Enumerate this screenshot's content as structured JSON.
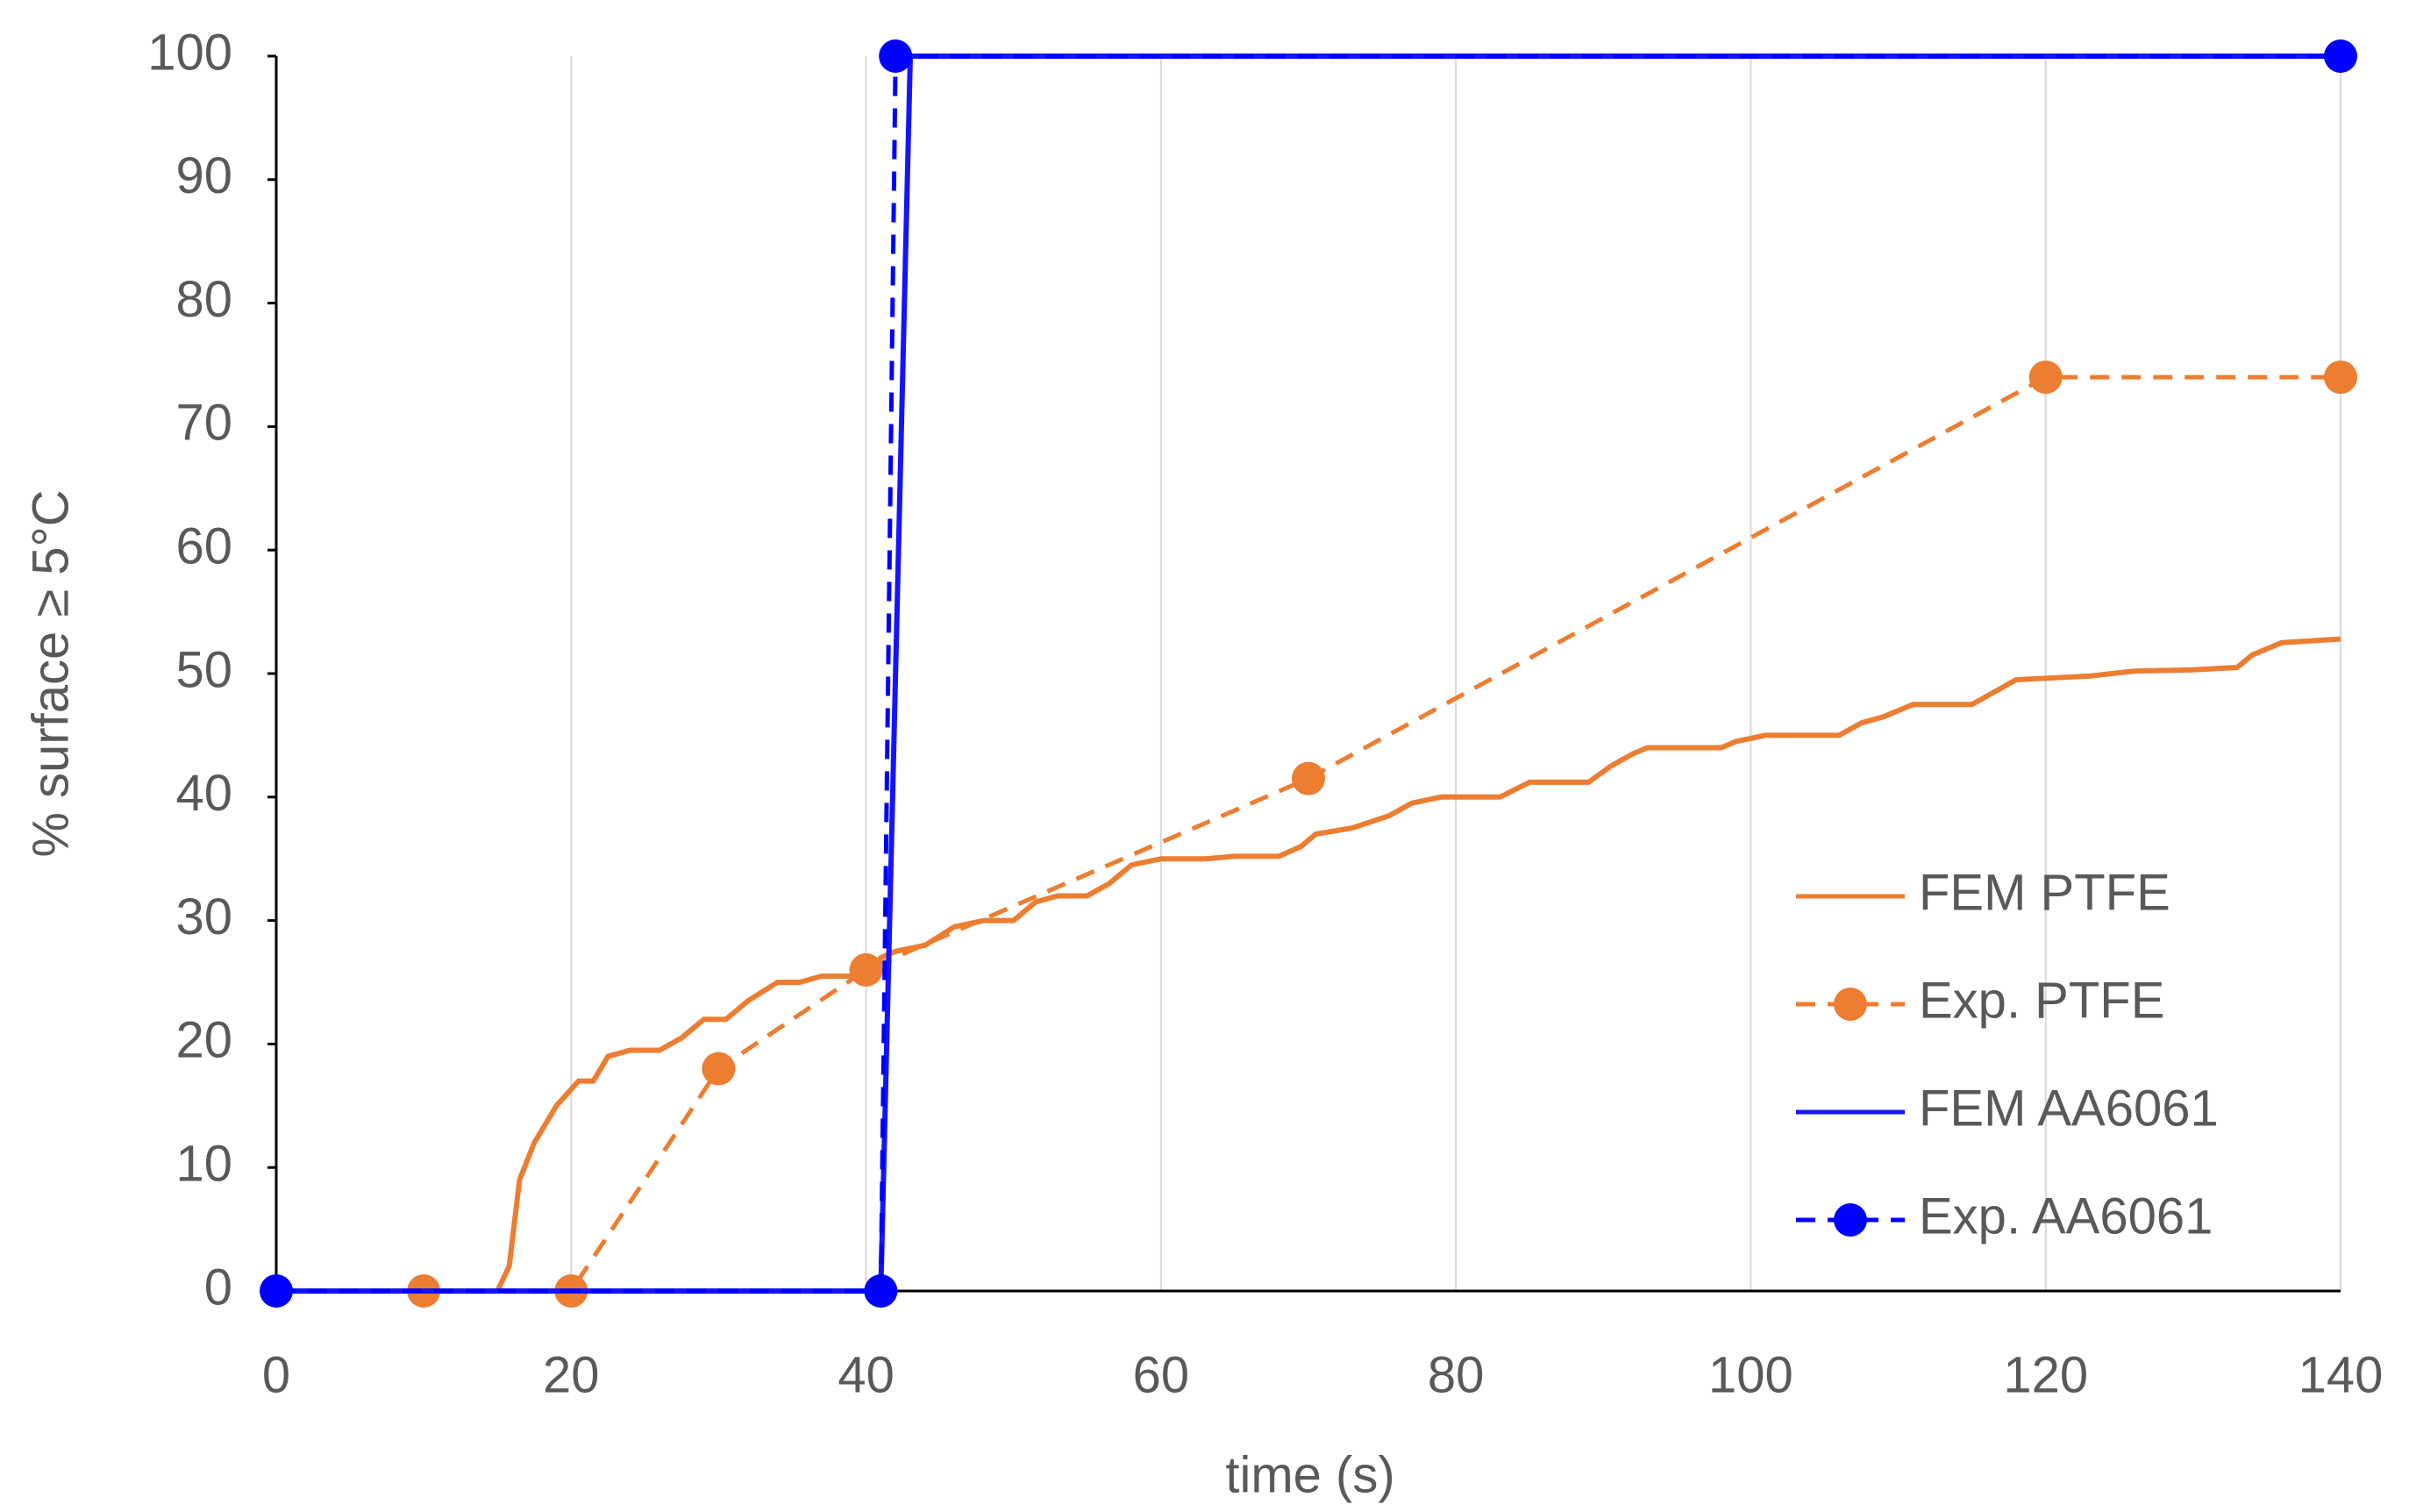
{
  "chart_data": {
    "type": "line",
    "x_label": "time (s)",
    "y_label": "% surface ≥ 5°C",
    "xlim": [
      0,
      140
    ],
    "xticks": [
      0,
      20,
      40,
      60,
      80,
      100,
      120,
      140
    ],
    "ylim": [
      0,
      100
    ],
    "yticks": [
      0,
      10,
      20,
      30,
      40,
      50,
      60,
      70,
      80,
      90,
      100
    ],
    "grid": "x",
    "legend": "right",
    "series": [
      {
        "name": "FEM PTFE",
        "color": "#ed7d31",
        "dashed": false,
        "markers": false,
        "x": [
          0,
          15,
          15.8,
          16.5,
          17.5,
          19,
          20.5,
          21.5,
          22.5,
          24,
          26,
          27.5,
          29,
          30.5,
          32,
          34,
          35.5,
          37,
          40,
          41,
          42,
          44,
          46,
          48,
          50,
          51.5,
          53,
          55,
          56.5,
          58,
          60,
          63,
          65,
          68,
          69.5,
          70.5,
          73,
          75.5,
          77,
          79,
          83,
          85,
          89,
          90.5,
          92,
          93,
          98,
          99,
          101,
          106,
          107.5,
          109,
          111,
          115,
          116.5,
          118,
          123,
          126,
          130,
          133,
          134,
          136,
          140
        ],
        "values": [
          0,
          0,
          2,
          9,
          12,
          15,
          17,
          17,
          19,
          19.5,
          19.5,
          20.5,
          22,
          22,
          23.5,
          25,
          25,
          25.5,
          25.5,
          27,
          27.5,
          28,
          29.5,
          30,
          30,
          31.5,
          32,
          32,
          33,
          34.5,
          35,
          35,
          35.2,
          35.2,
          36,
          37,
          37.5,
          38.5,
          39.5,
          40,
          40,
          41.2,
          41.2,
          42.5,
          43.5,
          44,
          44,
          44.5,
          45,
          45,
          46,
          46.5,
          47.5,
          47.5,
          48.5,
          49.5,
          49.8,
          50.2,
          50.3,
          50.5,
          51.5,
          52.5,
          52.8
        ]
      },
      {
        "name": "Exp. PTFE",
        "color": "#ed7d31",
        "dashed": true,
        "markers": true,
        "x": [
          10,
          20,
          30,
          40,
          70,
          120,
          140
        ],
        "values": [
          0,
          0,
          18,
          26,
          41.5,
          74,
          74
        ]
      },
      {
        "name": "FEM AA6061",
        "color": "#1414ff",
        "dashed": false,
        "markers": false,
        "x": [
          0,
          41,
          43,
          140
        ],
        "values": [
          0,
          0,
          100,
          100
        ]
      },
      {
        "name": "Exp. AA6061",
        "color": "#0000ff",
        "dashed": true,
        "markers": true,
        "x": [
          0,
          41,
          42,
          140
        ],
        "values": [
          0,
          0,
          100,
          100
        ]
      }
    ]
  }
}
